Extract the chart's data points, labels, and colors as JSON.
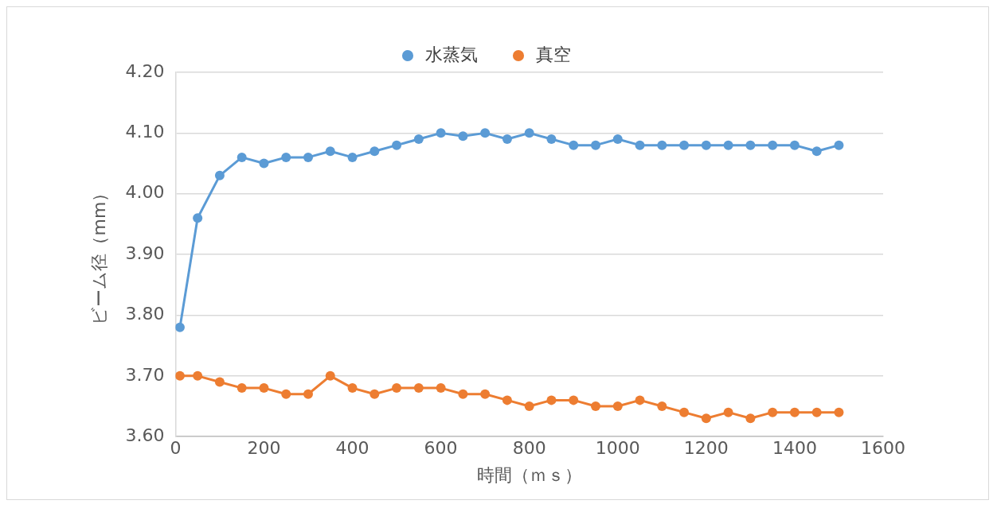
{
  "chart_data": {
    "type": "line",
    "xlabel": "時間（ｍｓ）",
    "ylabel": "ビーム径（mm）",
    "x": [
      10,
      50,
      100,
      150,
      200,
      250,
      300,
      350,
      400,
      450,
      500,
      550,
      600,
      650,
      700,
      750,
      800,
      850,
      900,
      950,
      1000,
      1050,
      1100,
      1150,
      1200,
      1250,
      1300,
      1350,
      1400,
      1450,
      1500
    ],
    "series": [
      {
        "name": "水蒸気",
        "color": "#5b9bd5",
        "values": [
          3.78,
          3.96,
          4.03,
          4.06,
          4.05,
          4.06,
          4.06,
          4.07,
          4.06,
          4.07,
          4.08,
          4.09,
          4.1,
          4.095,
          4.1,
          4.09,
          4.1,
          4.09,
          4.08,
          4.08,
          4.09,
          4.08,
          4.08,
          4.08,
          4.08,
          4.08,
          4.08,
          4.08,
          4.08,
          4.07,
          4.08
        ]
      },
      {
        "name": "真空",
        "color": "#ed7d31",
        "values": [
          3.7,
          3.7,
          3.69,
          3.68,
          3.68,
          3.67,
          3.67,
          3.7,
          3.68,
          3.67,
          3.68,
          3.68,
          3.68,
          3.67,
          3.67,
          3.66,
          3.65,
          3.66,
          3.66,
          3.65,
          3.65,
          3.66,
          3.65,
          3.64,
          3.63,
          3.64,
          3.63,
          3.64,
          3.64,
          3.64,
          3.64
        ]
      }
    ],
    "xlim": [
      0,
      1600
    ],
    "xticks": [
      0,
      200,
      400,
      600,
      800,
      1000,
      1200,
      1400,
      1600
    ],
    "ylim": [
      3.6,
      4.2
    ],
    "yticks": [
      {
        "value": 3.6,
        "label": "3.60"
      },
      {
        "value": 3.7,
        "label": "3.70"
      },
      {
        "value": 3.8,
        "label": "3.80"
      },
      {
        "value": 3.9,
        "label": "3.90"
      },
      {
        "value": 4.0,
        "label": "4.00"
      },
      {
        "value": 4.1,
        "label": "4.10"
      },
      {
        "value": 4.2,
        "label": "4.20"
      }
    ],
    "grid": "y",
    "legend": "top",
    "marker": "circle",
    "line_style": "solid"
  }
}
